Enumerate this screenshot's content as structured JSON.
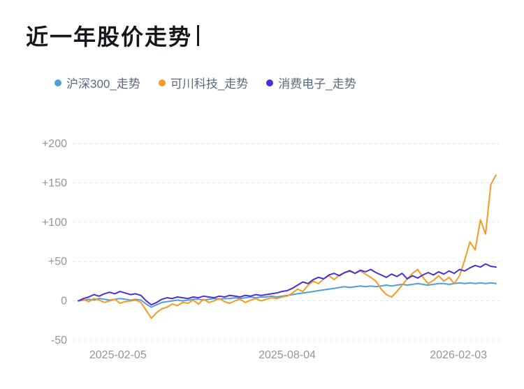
{
  "title": "近一年股价走势",
  "chart_data": {
    "type": "line",
    "title": "近一年股价走势",
    "legend_position": "top",
    "grid": "dashed-horizontal",
    "grid_color": "#e3e3e3",
    "axis_label_color": "#90969d",
    "ylim": [
      -50,
      200
    ],
    "y_ticks": [
      200,
      150,
      100,
      50,
      0,
      -50
    ],
    "y_tick_labels": [
      "+200",
      "+150",
      "+100",
      "+50",
      "0",
      "-50"
    ],
    "x_tick_labels": [
      {
        "label": "2025-02-05",
        "pos": 0.095
      },
      {
        "label": "2025-08-04",
        "pos": 0.5
      },
      {
        "label": "2026-02-03",
        "pos": 0.91
      }
    ],
    "x_range_note": "81 evenly spaced samples from 2025-02-05 to 2026-02-03",
    "series": [
      {
        "name": "沪深300_走势",
        "color": "#4f9edb",
        "values": [
          0,
          1,
          2,
          1,
          3,
          2,
          1,
          2,
          3,
          2,
          1,
          2,
          1,
          -4,
          -8,
          -5,
          -2,
          -1,
          0,
          1,
          0,
          1,
          2,
          2,
          1,
          2,
          3,
          2,
          3,
          3,
          4,
          3,
          4,
          5,
          4,
          5,
          5,
          6,
          5,
          6,
          7,
          8,
          9,
          10,
          11,
          12,
          13,
          14,
          15,
          16,
          17,
          18,
          17,
          18,
          19,
          18,
          19,
          18,
          19,
          20,
          19,
          20,
          21,
          20,
          21,
          22,
          21,
          20,
          21,
          22,
          22,
          21,
          22,
          23,
          22,
          23,
          22,
          23,
          22,
          23,
          22
        ]
      },
      {
        "name": "可川科技_走势",
        "color": "#f59a23",
        "values": [
          0,
          2,
          -1,
          3,
          1,
          -2,
          0,
          2,
          -3,
          -1,
          0,
          1,
          -2,
          -12,
          -22,
          -15,
          -10,
          -8,
          -4,
          -6,
          -2,
          -3,
          1,
          -4,
          2,
          -2,
          0,
          3,
          -1,
          -3,
          0,
          2,
          -2,
          1,
          3,
          0,
          2,
          4,
          3,
          5,
          6,
          10,
          15,
          12,
          20,
          25,
          22,
          28,
          32,
          27,
          33,
          36,
          39,
          35,
          38,
          34,
          30,
          25,
          15,
          8,
          5,
          12,
          20,
          28,
          35,
          40,
          30,
          22,
          26,
          32,
          25,
          30,
          22,
          32,
          52,
          75,
          65,
          103,
          85,
          148,
          160
        ]
      },
      {
        "name": "消费电子_走势",
        "color": "#4b2ed5",
        "values": [
          0,
          3,
          5,
          8,
          6,
          9,
          11,
          9,
          12,
          10,
          8,
          9,
          7,
          0,
          -5,
          -2,
          2,
          4,
          3,
          5,
          4,
          3,
          5,
          4,
          6,
          5,
          4,
          6,
          5,
          7,
          6,
          5,
          7,
          6,
          8,
          7,
          8,
          9,
          10,
          12,
          13,
          16,
          20,
          24,
          22,
          27,
          30,
          28,
          33,
          35,
          32,
          36,
          38,
          35,
          39,
          37,
          40,
          36,
          33,
          30,
          34,
          31,
          35,
          28,
          32,
          29,
          33,
          36,
          33,
          37,
          34,
          38,
          35,
          40,
          38,
          42,
          45,
          43,
          47,
          44,
          43
        ]
      }
    ]
  }
}
